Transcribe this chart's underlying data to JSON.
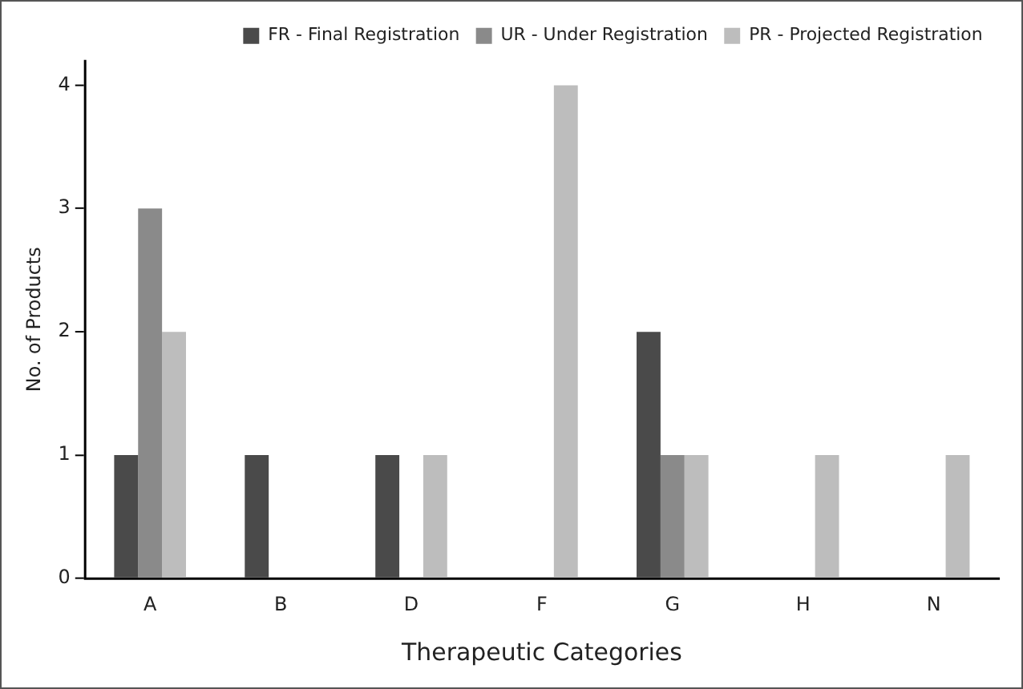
{
  "chart_data": {
    "type": "bar",
    "xlabel": "Therapeutic Categories",
    "ylabel": "No. of Products",
    "categories": [
      "A",
      "B",
      "D",
      "F",
      "G",
      "H",
      "N"
    ],
    "series": [
      {
        "name": "FR - Final Registration",
        "color": "#4a4a4a",
        "values": [
          1,
          1,
          1,
          0,
          2,
          0,
          0
        ]
      },
      {
        "name": "UR - Under Registration",
        "color": "#8a8a8a",
        "values": [
          3,
          0,
          0,
          0,
          1,
          0,
          0
        ]
      },
      {
        "name": "PR - Projected Registration",
        "color": "#bdbdbd",
        "values": [
          2,
          0,
          1,
          4,
          1,
          1,
          1
        ]
      }
    ],
    "ylim": [
      0,
      4.2
    ],
    "yticks": [
      0,
      1,
      2,
      3,
      4
    ],
    "grid": false,
    "legend": "top right"
  }
}
